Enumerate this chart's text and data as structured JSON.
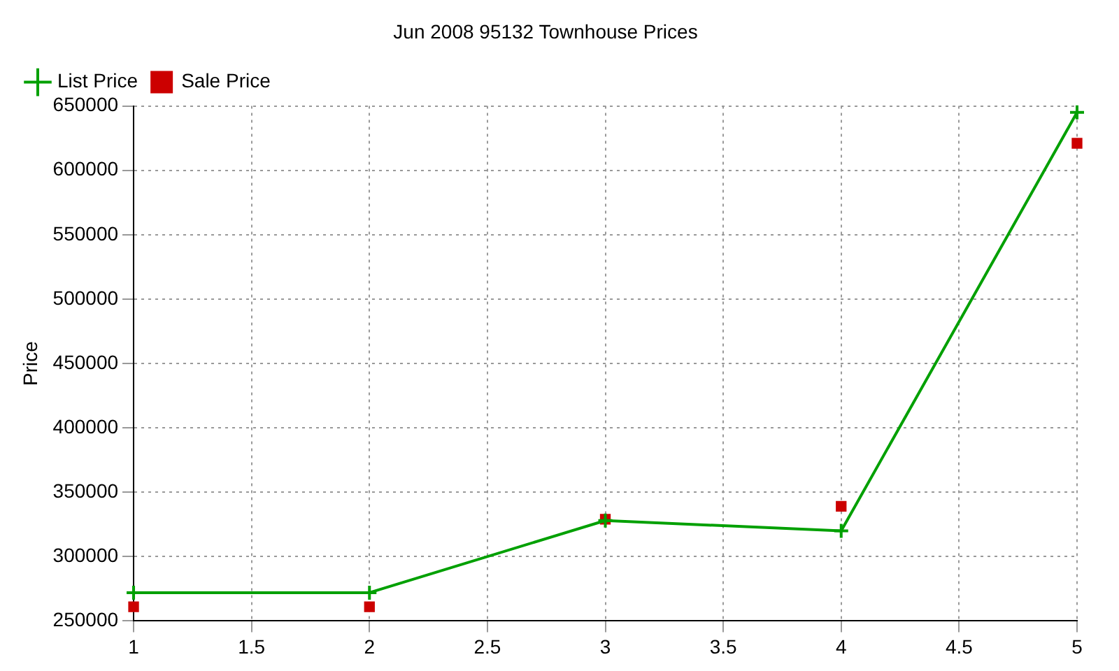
{
  "chart_data": {
    "type": "line",
    "title": "Jun 2008 95132 Townhouse Prices",
    "ylabel": "Price",
    "x": [
      1,
      2,
      3,
      4,
      5
    ],
    "series": [
      {
        "name": "List Price",
        "color": "#00a000",
        "type": "line",
        "marker": "cross",
        "values": [
          272000,
          272000,
          328000,
          320000,
          645000
        ]
      },
      {
        "name": "Sale Price",
        "color": "#cc0000",
        "type": "scatter",
        "marker": "square",
        "values": [
          261000,
          261000,
          329000,
          339000,
          621000
        ]
      }
    ],
    "xlim": [
      1,
      5
    ],
    "xticks": [
      1,
      1.5,
      2,
      2.5,
      3,
      3.5,
      4,
      4.5,
      5
    ],
    "ylim": [
      250000,
      650000
    ],
    "yticks": [
      250000,
      300000,
      350000,
      400000,
      450000,
      500000,
      550000,
      600000,
      650000
    ],
    "grid": true,
    "legend": "top left"
  }
}
